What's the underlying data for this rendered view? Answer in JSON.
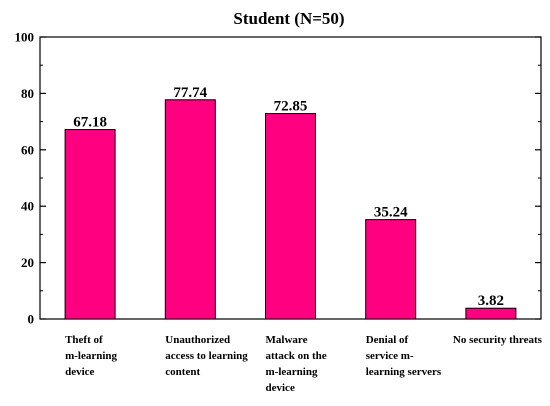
{
  "chart_data": {
    "type": "bar",
    "title": "Student (N=50)",
    "xlabel": "",
    "ylabel": "",
    "ylim": [
      0,
      100
    ],
    "yticks": [
      0,
      20,
      40,
      60,
      80,
      100
    ],
    "grid": false,
    "legend": "none",
    "bar_color": "#ff0080",
    "categories": [
      [
        "Theft of",
        "m-learning",
        "device"
      ],
      [
        "Unauthorized",
        "access to learning",
        "content"
      ],
      [
        "Malware",
        "attack on the",
        "m-learning",
        "device"
      ],
      [
        "Denial of",
        "service m-",
        "learning servers"
      ],
      [
        "No security threats"
      ]
    ],
    "values": [
      67.18,
      77.74,
      72.85,
      35.24,
      3.82
    ],
    "value_labels": [
      "67.18",
      "77.74",
      "72.85",
      "35.24",
      "3.82"
    ]
  }
}
